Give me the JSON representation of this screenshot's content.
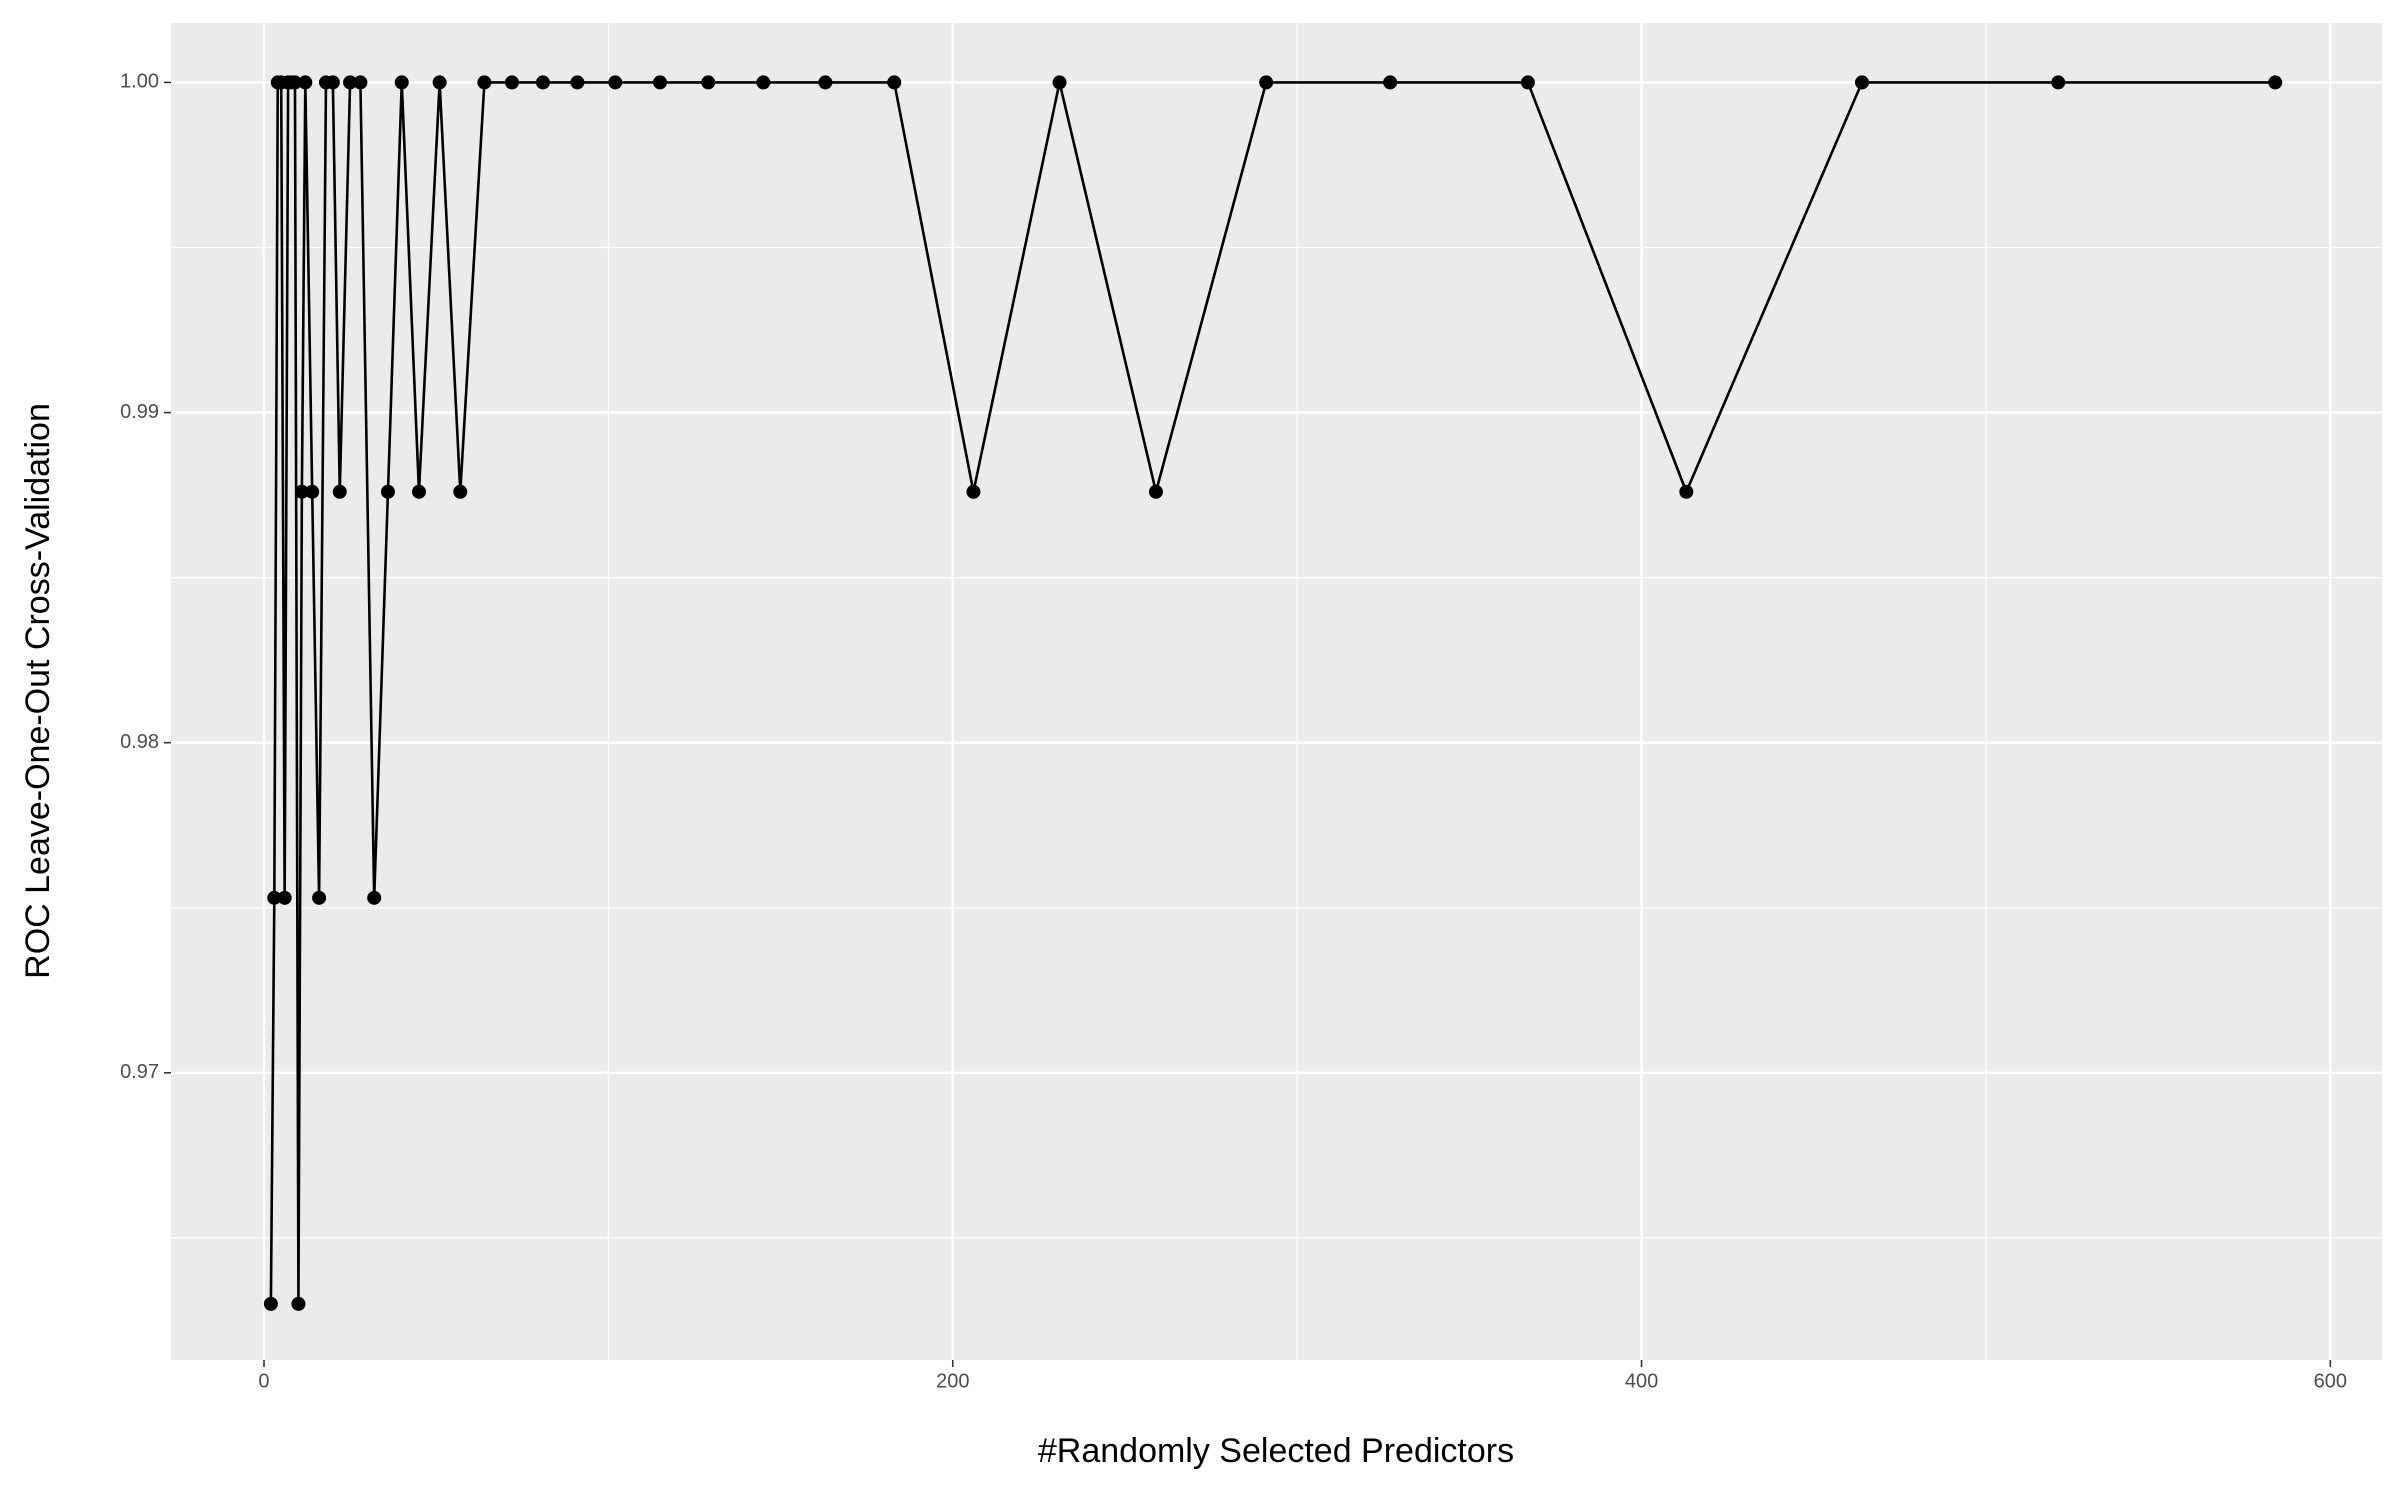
{
  "chart_data": {
    "type": "line",
    "x_label": "#Randomly Selected Predictors",
    "y_label": "ROC Leave-One-Out Cross-Validation",
    "x": [
      2,
      3,
      4,
      5,
      6,
      7,
      8,
      9,
      10,
      11,
      12,
      14,
      16,
      18,
      20,
      22,
      25,
      28,
      32,
      36,
      40,
      45,
      51,
      57,
      64,
      72,
      81,
      91,
      102,
      115,
      129,
      145,
      163,
      183,
      206,
      231,
      259,
      291,
      327,
      367,
      413,
      464,
      521,
      584
    ],
    "values": [
      0.963,
      0.9753,
      1.0,
      1.0,
      0.9753,
      1.0,
      1.0,
      1.0,
      0.963,
      0.9876,
      1.0,
      0.9876,
      0.9753,
      1.0,
      1.0,
      0.9876,
      1.0,
      1.0,
      0.9753,
      0.9876,
      1.0,
      0.9876,
      1.0,
      0.9876,
      1.0,
      1.0,
      1.0,
      1.0,
      1.0,
      1.0,
      1.0,
      1.0,
      1.0,
      1.0,
      0.9876,
      1.0,
      0.9876,
      1.0,
      1.0,
      1.0,
      0.9876,
      1.0,
      1.0,
      1.0
    ],
    "color": "#000000",
    "xlim": [
      -27,
      615
    ],
    "ylim": [
      0.9613,
      1.0018
    ],
    "xticks": [
      0,
      200,
      400,
      600
    ],
    "yticks": [
      0.97,
      0.98,
      0.99,
      {
        "value": 1.0,
        "label": "1.00"
      }
    ],
    "grid": true,
    "minor_grid": true
  }
}
